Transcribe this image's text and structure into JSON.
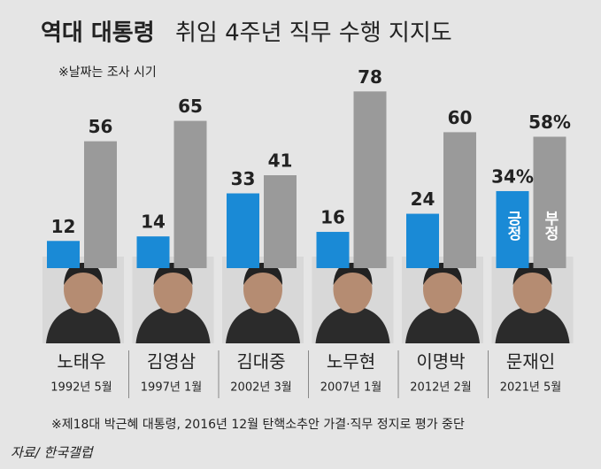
{
  "chart_data": {
    "type": "bar",
    "title": [
      "역대 대통령",
      "취임 4주년 직무 수행 지지도"
    ],
    "subtitle": "※날짜는 조사 시기",
    "categories": [
      "노태우",
      "김영삼",
      "김대중",
      "노무현",
      "이명박",
      "문재인"
    ],
    "category_dates": [
      "1992년 5월",
      "1997년 1월",
      "2002년 3월",
      "2007년 1월",
      "2012년 2월",
      "2021년 5월"
    ],
    "series": [
      {
        "name": "긍정",
        "color": "#1a8ad6",
        "values": [
          12,
          14,
          33,
          16,
          24,
          34
        ],
        "value_labels": [
          "12",
          "14",
          "33",
          "16",
          "24",
          "34%"
        ]
      },
      {
        "name": "부정",
        "color": "#9a9a9a",
        "values": [
          56,
          65,
          41,
          78,
          60,
          58
        ],
        "value_labels": [
          "56",
          "65",
          "41",
          "78",
          "60",
          "58%"
        ]
      }
    ],
    "footnote": "※제18대 박근혜 대통령, 2016년 12월 탄핵소추안 가결·직무 정지로 평가 중단",
    "source": "자료/ 한국갤럽"
  }
}
